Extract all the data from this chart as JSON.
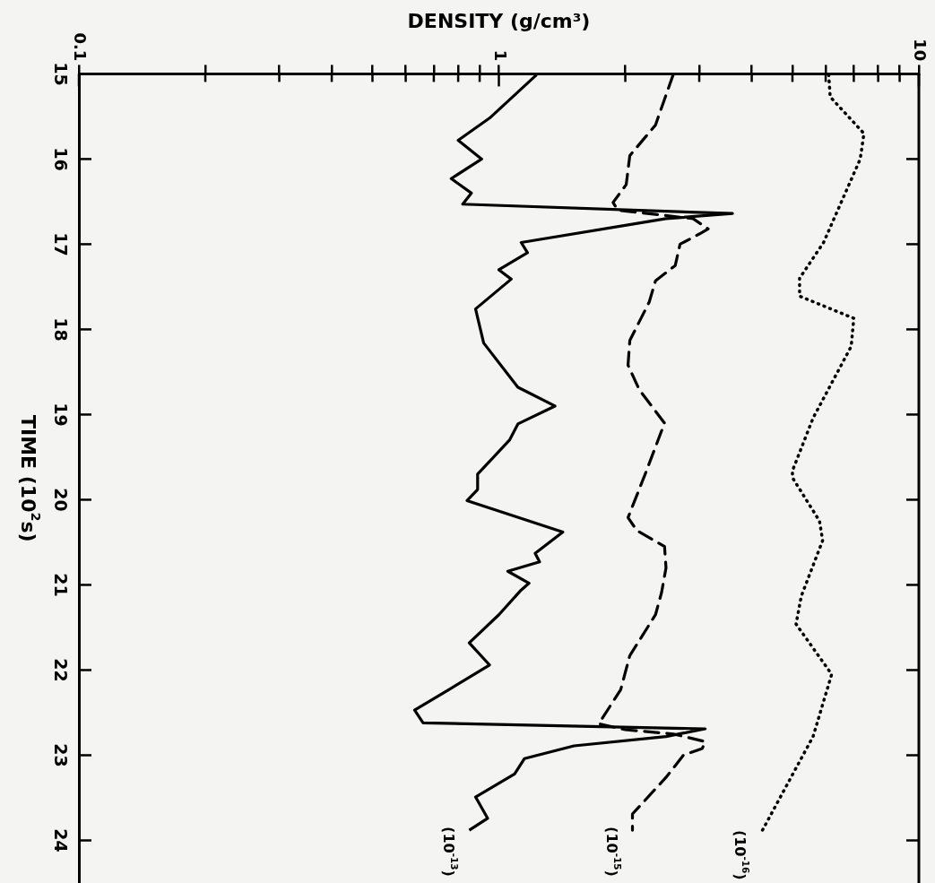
{
  "chart_data": {
    "type": "line",
    "orientation": "horizontal",
    "xlabel": "DENSITY (g/cm³)",
    "ylabel": "TIME (10$^{2}$s)",
    "log": "x",
    "xlim": [
      0.1,
      10
    ],
    "xticks": [
      0.1,
      {
        "value": 0.2,
        "label": null
      },
      {
        "value": 0.3,
        "label": null
      },
      {
        "value": 0.4,
        "label": null
      },
      {
        "value": 0.5,
        "label": null
      },
      {
        "value": 0.6,
        "label": null
      },
      {
        "value": 0.7,
        "label": null
      },
      {
        "value": 0.8,
        "label": null
      },
      {
        "value": 0.9,
        "label": null
      },
      1,
      {
        "value": 2,
        "label": null
      },
      {
        "value": 3,
        "label": null
      },
      {
        "value": 4,
        "label": null
      },
      {
        "value": 5,
        "label": null
      },
      {
        "value": 6,
        "label": null
      },
      {
        "value": 7,
        "label": null
      },
      {
        "value": 8,
        "label": null
      },
      {
        "value": 9,
        "label": null
      },
      10
    ],
    "ylim": [
      24.5,
      15
    ],
    "yticks": [
      15,
      16,
      17,
      18,
      19,
      20,
      21,
      22,
      23,
      24
    ],
    "grid": false,
    "marker": "none",
    "series": [
      {
        "name": "(10$^{-13}$)",
        "color": "#000000",
        "line_style": "solid",
        "x": [
          15.01,
          15.52,
          15.78,
          16.0,
          16.23,
          16.4,
          16.53,
          16.64,
          16.7,
          16.98,
          17.1,
          17.3,
          17.41,
          17.76,
          18.16,
          18.68,
          18.9,
          19.11,
          19.3,
          19.7,
          19.88,
          20.01,
          20.38,
          20.63,
          20.73,
          20.84,
          20.98,
          21.06,
          21.35,
          21.68,
          21.94,
          22.23,
          22.47,
          22.62,
          22.69,
          22.78,
          22.89,
          23.04,
          23.22,
          23.49,
          23.74,
          23.88
        ],
        "values": [
          1.23,
          0.95,
          0.8,
          0.91,
          0.77,
          0.86,
          0.82,
          3.6,
          2.5,
          1.13,
          1.17,
          1.0,
          1.07,
          0.88,
          0.92,
          1.11,
          1.36,
          1.11,
          1.06,
          0.89,
          0.89,
          0.84,
          1.42,
          1.22,
          1.25,
          1.05,
          1.18,
          1.13,
          1.0,
          0.85,
          0.95,
          0.76,
          0.63,
          0.66,
          3.1,
          2.5,
          1.51,
          1.15,
          1.09,
          0.88,
          0.94,
          0.85
        ]
      },
      {
        "name": "(10$^{-15}$)",
        "color": "#000000",
        "line_style": "dashed",
        "x": [
          15.01,
          15.6,
          15.96,
          16.3,
          16.51,
          16.6,
          16.7,
          16.82,
          16.88,
          17.0,
          17.25,
          17.43,
          17.68,
          18.13,
          18.42,
          18.71,
          19.1,
          19.7,
          20.21,
          20.36,
          20.55,
          20.8,
          21.09,
          21.35,
          21.83,
          22.23,
          22.63,
          22.7,
          22.75,
          22.84,
          22.92,
          23.0,
          23.26,
          23.69,
          23.88
        ],
        "values": [
          2.6,
          2.36,
          2.05,
          2.01,
          1.87,
          1.92,
          2.9,
          3.15,
          3.0,
          2.7,
          2.63,
          2.36,
          2.28,
          2.05,
          2.03,
          2.16,
          2.48,
          2.23,
          2.03,
          2.13,
          2.48,
          2.5,
          2.44,
          2.36,
          2.05,
          1.95,
          1.73,
          2.0,
          2.6,
          3.1,
          3.05,
          2.75,
          2.5,
          2.08,
          2.08
        ]
      },
      {
        "name": "(10$^{-16}$)",
        "color": "#000000",
        "line_style": "dotted",
        "x": [
          15.01,
          15.27,
          15.7,
          16.0,
          16.98,
          17.4,
          17.61,
          17.87,
          18.2,
          19.04,
          19.66,
          19.74,
          20.25,
          20.48,
          21.13,
          21.46,
          22.05,
          22.78,
          23.92
        ],
        "values": [
          6.1,
          6.15,
          7.4,
          7.25,
          5.93,
          5.2,
          5.2,
          7.0,
          6.9,
          5.6,
          5.0,
          5.0,
          5.8,
          5.9,
          5.25,
          5.1,
          6.2,
          5.6,
          4.2
        ]
      }
    ]
  }
}
